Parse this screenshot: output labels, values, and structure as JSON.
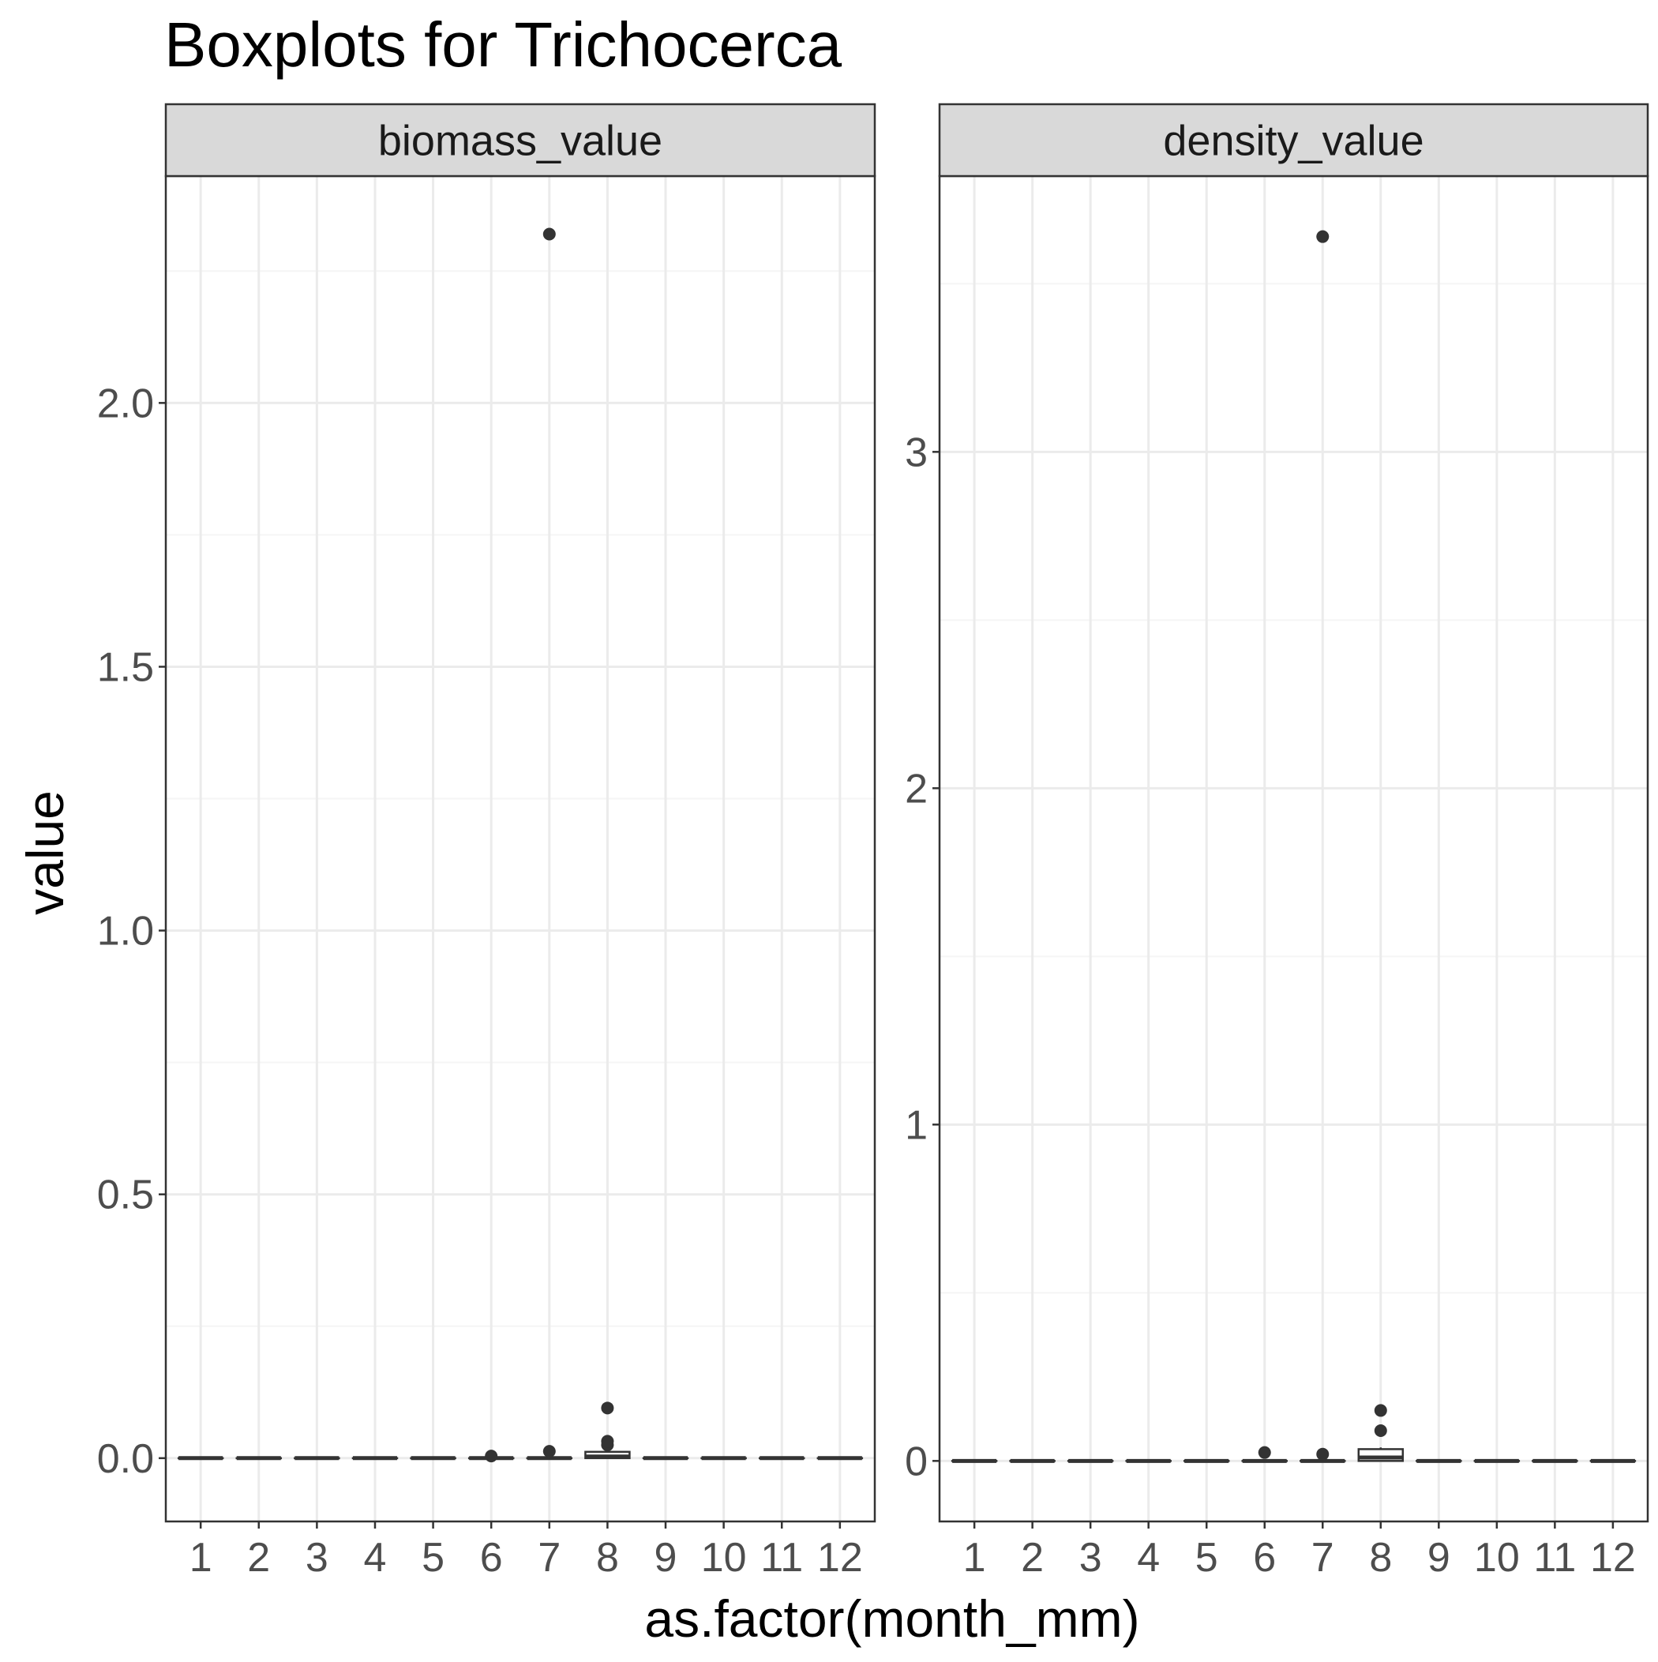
{
  "chart_data": {
    "type": "boxplot",
    "title": "Boxplots for Trichocerca",
    "xlabel": "as.factor(month_mm)",
    "ylabel": "value",
    "categories": [
      "1",
      "2",
      "3",
      "4",
      "5",
      "6",
      "7",
      "8",
      "9",
      "10",
      "11",
      "12"
    ],
    "grid": true,
    "panels": [
      {
        "strip": "biomass_value",
        "ylim": [
          -0.12,
          2.43
        ],
        "yticks": [
          0.0,
          0.5,
          1.0,
          1.5,
          2.0
        ],
        "ytick_labels": [
          "0.0",
          "0.5",
          "1.0",
          "1.5",
          "2.0"
        ],
        "boxes": [
          {
            "x": "1",
            "q1": 0,
            "median": 0,
            "q3": 0,
            "whisker_low": 0,
            "whisker_high": 0,
            "outliers": []
          },
          {
            "x": "2",
            "q1": 0,
            "median": 0,
            "q3": 0,
            "whisker_low": 0,
            "whisker_high": 0,
            "outliers": []
          },
          {
            "x": "3",
            "q1": 0,
            "median": 0,
            "q3": 0,
            "whisker_low": 0,
            "whisker_high": 0,
            "outliers": []
          },
          {
            "x": "4",
            "q1": 0,
            "median": 0,
            "q3": 0,
            "whisker_low": 0,
            "whisker_high": 0,
            "outliers": []
          },
          {
            "x": "5",
            "q1": 0,
            "median": 0,
            "q3": 0,
            "whisker_low": 0,
            "whisker_high": 0,
            "outliers": []
          },
          {
            "x": "6",
            "q1": 0,
            "median": 0,
            "q3": 0,
            "whisker_low": 0,
            "whisker_high": 0,
            "outliers": [
              0.004
            ]
          },
          {
            "x": "7",
            "q1": 0,
            "median": 0,
            "q3": 0,
            "whisker_low": 0,
            "whisker_high": 0,
            "outliers": [
              0.013,
              2.32
            ]
          },
          {
            "x": "8",
            "q1": 0,
            "median": 0.003,
            "q3": 0.012,
            "whisker_low": 0,
            "whisker_high": 0.015,
            "outliers": [
              0.025,
              0.032,
              0.095
            ]
          },
          {
            "x": "9",
            "q1": 0,
            "median": 0,
            "q3": 0,
            "whisker_low": 0,
            "whisker_high": 0,
            "outliers": []
          },
          {
            "x": "10",
            "q1": 0,
            "median": 0,
            "q3": 0,
            "whisker_low": 0,
            "whisker_high": 0,
            "outliers": []
          },
          {
            "x": "11",
            "q1": 0,
            "median": 0,
            "q3": 0,
            "whisker_low": 0,
            "whisker_high": 0,
            "outliers": []
          },
          {
            "x": "12",
            "q1": 0,
            "median": 0,
            "q3": 0,
            "whisker_low": 0,
            "whisker_high": 0,
            "outliers": []
          }
        ]
      },
      {
        "strip": "density_value",
        "ylim": [
          -0.18,
          3.82
        ],
        "yticks": [
          0,
          1,
          2,
          3
        ],
        "ytick_labels": [
          "0",
          "1",
          "2",
          "3"
        ],
        "boxes": [
          {
            "x": "1",
            "q1": 0,
            "median": 0,
            "q3": 0,
            "whisker_low": 0,
            "whisker_high": 0,
            "outliers": []
          },
          {
            "x": "2",
            "q1": 0,
            "median": 0,
            "q3": 0,
            "whisker_low": 0,
            "whisker_high": 0,
            "outliers": []
          },
          {
            "x": "3",
            "q1": 0,
            "median": 0,
            "q3": 0,
            "whisker_low": 0,
            "whisker_high": 0,
            "outliers": []
          },
          {
            "x": "4",
            "q1": 0,
            "median": 0,
            "q3": 0,
            "whisker_low": 0,
            "whisker_high": 0,
            "outliers": []
          },
          {
            "x": "5",
            "q1": 0,
            "median": 0,
            "q3": 0,
            "whisker_low": 0,
            "whisker_high": 0,
            "outliers": []
          },
          {
            "x": "6",
            "q1": 0,
            "median": 0,
            "q3": 0,
            "whisker_low": 0,
            "whisker_high": 0,
            "outliers": [
              0.025
            ]
          },
          {
            "x": "7",
            "q1": 0,
            "median": 0,
            "q3": 0,
            "whisker_low": 0,
            "whisker_high": 0,
            "outliers": [
              0.02,
              3.64
            ]
          },
          {
            "x": "8",
            "q1": 0,
            "median": 0.01,
            "q3": 0.035,
            "whisker_low": 0,
            "whisker_high": 0.04,
            "outliers": [
              0.09,
              0.15
            ]
          },
          {
            "x": "9",
            "q1": 0,
            "median": 0,
            "q3": 0,
            "whisker_low": 0,
            "whisker_high": 0,
            "outliers": []
          },
          {
            "x": "10",
            "q1": 0,
            "median": 0,
            "q3": 0,
            "whisker_low": 0,
            "whisker_high": 0,
            "outliers": []
          },
          {
            "x": "11",
            "q1": 0,
            "median": 0,
            "q3": 0,
            "whisker_low": 0,
            "whisker_high": 0,
            "outliers": []
          },
          {
            "x": "12",
            "q1": 0,
            "median": 0,
            "q3": 0,
            "whisker_low": 0,
            "whisker_high": 0,
            "outliers": []
          }
        ]
      }
    ],
    "colors": {
      "strip_fill": "#d9d9d9",
      "frame": "#333333",
      "grid_major": "#ebebeb",
      "grid_minor": "#f5f5f5",
      "box_line": "#333333",
      "box_fill": "#ffffff",
      "outlier": "#333333",
      "tick_text": "#4d4d4d",
      "text": "#000000"
    }
  }
}
